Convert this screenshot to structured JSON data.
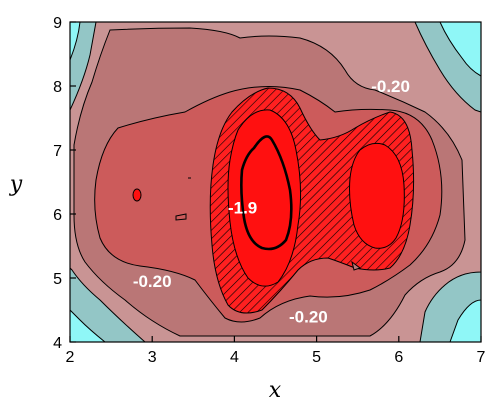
{
  "chart_data": {
    "type": "contour",
    "xlabel": "x",
    "ylabel": "y",
    "xlim": [
      2,
      7
    ],
    "ylim": [
      4,
      9
    ],
    "xticks": [
      2,
      3,
      4,
      5,
      6,
      7
    ],
    "yticks": [
      4,
      5,
      6,
      7,
      8,
      9
    ],
    "contour_labels": [
      {
        "text": "-0.20",
        "x": 5.9,
        "y": 8.0
      },
      {
        "text": "-1.9",
        "x": 4.1,
        "y": 6.1
      },
      {
        "text": "-0.20",
        "x": 3.0,
        "y": 4.95
      },
      {
        "text": "-0.20",
        "x": 4.9,
        "y": 4.4
      }
    ],
    "colors": {
      "cyan": "#8ff7f7",
      "teal": "#93c6c6",
      "pink": "#c99494",
      "rose": "#ba7676",
      "mid_red": "#cc5b5b",
      "bright_red": "#ff1010",
      "core_red": "#ff0000",
      "line": "#000000"
    }
  }
}
